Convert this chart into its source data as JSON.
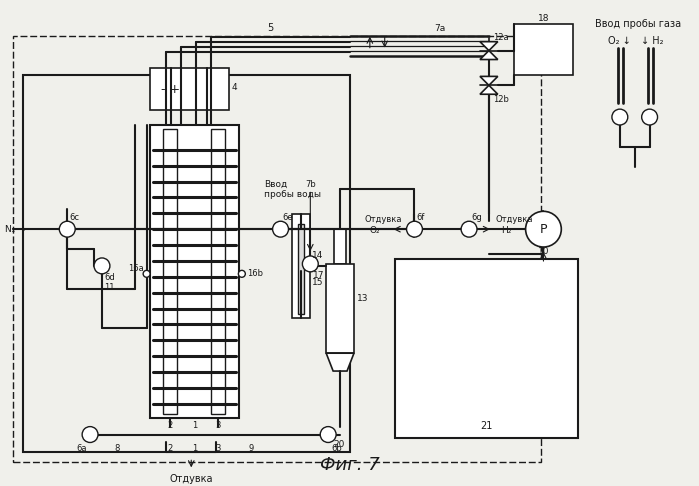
{
  "bg_color": "#f0f0eb",
  "line_color": "#1a1a1a",
  "fig_width": 6.99,
  "fig_height": 4.86,
  "title": "Фиг. 7",
  "label_5": "5",
  "label_7a": "7а",
  "label_7b": "7b",
  "label_4": "4",
  "label_6c": "6с",
  "label_6d": "6d",
  "label_6e": "6е",
  "label_6f": "6f",
  "label_6g": "6g",
  "label_6a": "6а",
  "label_6b": "6b",
  "label_11": "11",
  "label_14": "14",
  "label_15": "15",
  "label_13": "13",
  "label_17": "17",
  "label_16a": "16а",
  "label_16b": "16b",
  "label_8": "8",
  "label_2": "2",
  "label_1": "1",
  "label_3": "3",
  "label_9": "9",
  "label_20": "20",
  "label_21": "21",
  "label_10": "10",
  "label_12a": "12а",
  "label_12b": "12b",
  "label_18": "18",
  "label_N2": "N₂ →",
  "label_vvod_vody": "Ввод\nпробы воды",
  "label_otvod_O2": "Отдувка\nO₂",
  "label_otvod_H2": "Отдувка\nН₂",
  "label_otvod_bottom": "Отдувка",
  "label_vvod_gaz": "Ввод пробы газа",
  "label_O2": "O₂",
  "label_H2": "↓ Н₂",
  "label_minus_plus": "- +"
}
